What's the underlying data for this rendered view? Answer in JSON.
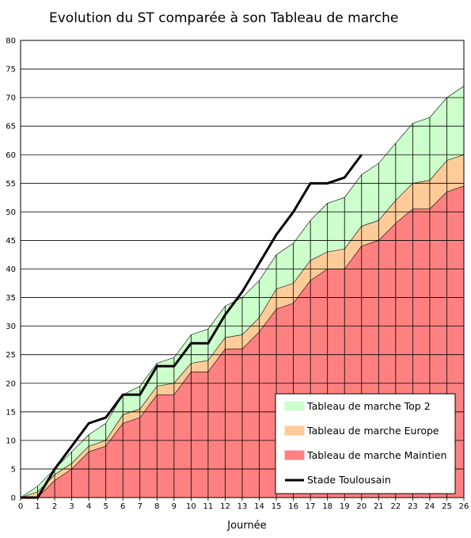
{
  "chart_data": {
    "type": "area",
    "title": "Evolution du ST comparée à son Tableau de marche",
    "xlabel": "Journée",
    "ylabel": "",
    "x": [
      0,
      1,
      2,
      3,
      4,
      5,
      6,
      7,
      8,
      9,
      10,
      11,
      12,
      13,
      14,
      15,
      16,
      17,
      18,
      19,
      20,
      21,
      22,
      23,
      24,
      25,
      26
    ],
    "xlim": [
      0,
      26
    ],
    "ylim": [
      0,
      80
    ],
    "yticks": [
      0,
      5,
      10,
      15,
      20,
      25,
      30,
      35,
      40,
      45,
      50,
      55,
      60,
      65,
      70,
      75,
      80
    ],
    "grid": "horizontal",
    "legend_position": "bottom-right",
    "series": [
      {
        "name": "Tableau de marche Top 2",
        "kind": "area",
        "color": "#ccffcc",
        "values": [
          0,
          2,
          5,
          8,
          11,
          13,
          18,
          19.5,
          23.5,
          24.5,
          28.5,
          29.5,
          33.5,
          35,
          38,
          42.5,
          44.5,
          48.5,
          51.5,
          52.5,
          56.5,
          58.5,
          62,
          65.5,
          66.5,
          70,
          72
        ]
      },
      {
        "name": "Tableau de marche Europe",
        "kind": "area",
        "color": "#ffcc99",
        "values": [
          0,
          1,
          4,
          6,
          9,
          10,
          14.5,
          15.5,
          19.5,
          20,
          23.5,
          24,
          28,
          28.5,
          31.5,
          36.5,
          37.5,
          41.5,
          43,
          43.5,
          47.5,
          48.5,
          52,
          55,
          55.5,
          59,
          60
        ]
      },
      {
        "name": "Tableau de marche Maintien",
        "kind": "area",
        "color": "#ff8080",
        "values": [
          0,
          0,
          3,
          5,
          8,
          9,
          13,
          14,
          18,
          18,
          22,
          22,
          26,
          26,
          29,
          33,
          34,
          38,
          40,
          40,
          44,
          45,
          48,
          50.5,
          50.5,
          53.5,
          54.5
        ]
      },
      {
        "name": "Stade Toulousain",
        "kind": "line",
        "color": "#000000",
        "x": [
          0,
          1,
          2,
          3,
          4,
          5,
          6,
          7,
          8,
          9,
          10,
          11,
          12,
          13,
          14,
          15,
          16,
          17,
          18,
          19,
          20
        ],
        "values": [
          0,
          0,
          5,
          9,
          13,
          14,
          18,
          18,
          23,
          23,
          27,
          27,
          32,
          36,
          41,
          46,
          50,
          55,
          55,
          56,
          60
        ]
      }
    ]
  }
}
